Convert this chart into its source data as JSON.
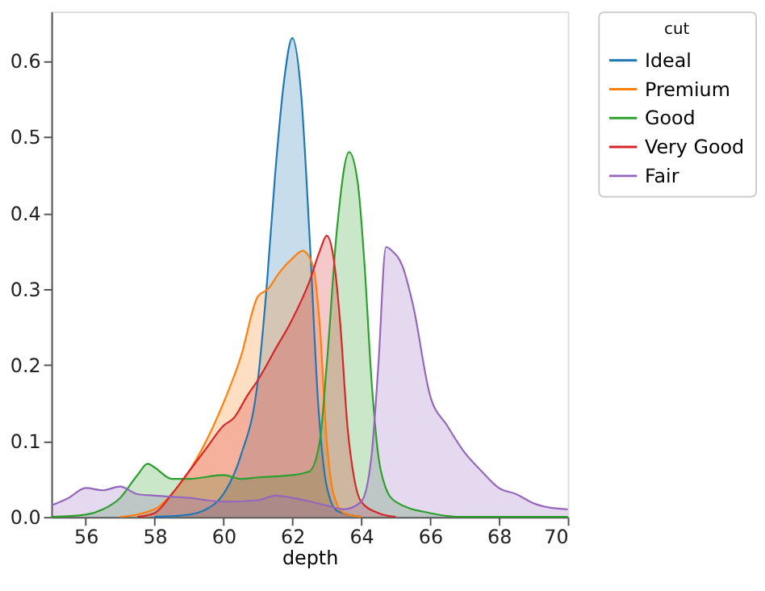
{
  "chart_data": {
    "type": "area",
    "xlabel": "depth",
    "legend_title": "cut",
    "legend": "right",
    "grid": false,
    "xlim": [
      55,
      70
    ],
    "xticks": [
      56,
      58,
      60,
      62,
      64,
      66,
      68,
      70
    ],
    "ylim": [
      0,
      0.665
    ],
    "yticks": [
      {
        "value": 0,
        "label": "0.0"
      },
      0.1,
      0.2,
      0.3,
      0.4,
      0.5,
      0.6
    ],
    "series": [
      {
        "name": "Ideal",
        "color": "#1f77b4",
        "x": [
          58,
          59,
          59.5,
          60,
          60.5,
          61,
          61.25,
          61.5,
          61.75,
          62,
          62.25,
          62.5,
          62.75,
          63,
          63.3,
          64
        ],
        "values": [
          0,
          0.003,
          0.01,
          0.03,
          0.08,
          0.18,
          0.3,
          0.45,
          0.57,
          0.63,
          0.56,
          0.37,
          0.15,
          0.04,
          0.008,
          0
        ]
      },
      {
        "name": "Premium",
        "color": "#ff7f0e",
        "x": [
          57,
          58,
          58.5,
          59,
          59.5,
          60,
          60.5,
          61,
          61.3,
          61.6,
          62,
          62.3,
          62.6,
          62.8,
          63,
          63.2,
          63.5,
          64
        ],
        "values": [
          0,
          0.01,
          0.03,
          0.06,
          0.1,
          0.15,
          0.21,
          0.29,
          0.3,
          0.32,
          0.34,
          0.35,
          0.33,
          0.25,
          0.1,
          0.03,
          0.005,
          0
        ]
      },
      {
        "name": "Good",
        "color": "#2ca02c",
        "x": [
          55,
          56,
          56.5,
          57,
          57.5,
          57.8,
          58,
          58.5,
          59,
          60,
          60.5,
          61,
          62,
          62.5,
          62.8,
          63,
          63.3,
          63.65,
          63.9,
          64.1,
          64.3,
          64.5,
          64.7,
          65,
          66,
          67,
          70
        ],
        "values": [
          0,
          0.003,
          0.01,
          0.025,
          0.055,
          0.07,
          0.065,
          0.05,
          0.05,
          0.055,
          0.05,
          0.052,
          0.055,
          0.06,
          0.1,
          0.2,
          0.38,
          0.48,
          0.44,
          0.33,
          0.18,
          0.08,
          0.04,
          0.02,
          0.005,
          0,
          0
        ]
      },
      {
        "name": "Very Good",
        "color": "#d62728",
        "x": [
          57.5,
          58,
          58.5,
          59,
          59.5,
          60,
          60.3,
          60.7,
          61,
          61.5,
          62,
          62.5,
          62.8,
          63,
          63.2,
          63.4,
          63.6,
          63.8,
          64,
          64.5,
          65
        ],
        "values": [
          0,
          0.005,
          0.03,
          0.06,
          0.09,
          0.12,
          0.13,
          0.16,
          0.18,
          0.22,
          0.26,
          0.31,
          0.35,
          0.37,
          0.34,
          0.25,
          0.12,
          0.05,
          0.02,
          0.005,
          0
        ]
      },
      {
        "name": "Fair",
        "color": "#9467bd",
        "x": [
          55,
          55.5,
          56,
          56.5,
          57,
          57.5,
          58,
          59,
          60,
          61,
          61.5,
          62,
          63,
          63.5,
          64,
          64.3,
          64.5,
          64.72,
          64.9,
          65.2,
          65.5,
          66,
          66.5,
          67,
          67.5,
          68,
          68.5,
          69,
          69.5,
          70
        ],
        "values": [
          0.015,
          0.025,
          0.038,
          0.035,
          0.04,
          0.03,
          0.028,
          0.025,
          0.02,
          0.022,
          0.028,
          0.025,
          0.015,
          0.01,
          0.02,
          0.08,
          0.2,
          0.355,
          0.35,
          0.33,
          0.28,
          0.16,
          0.12,
          0.085,
          0.06,
          0.038,
          0.03,
          0.018,
          0.012,
          0.01
        ]
      }
    ]
  }
}
